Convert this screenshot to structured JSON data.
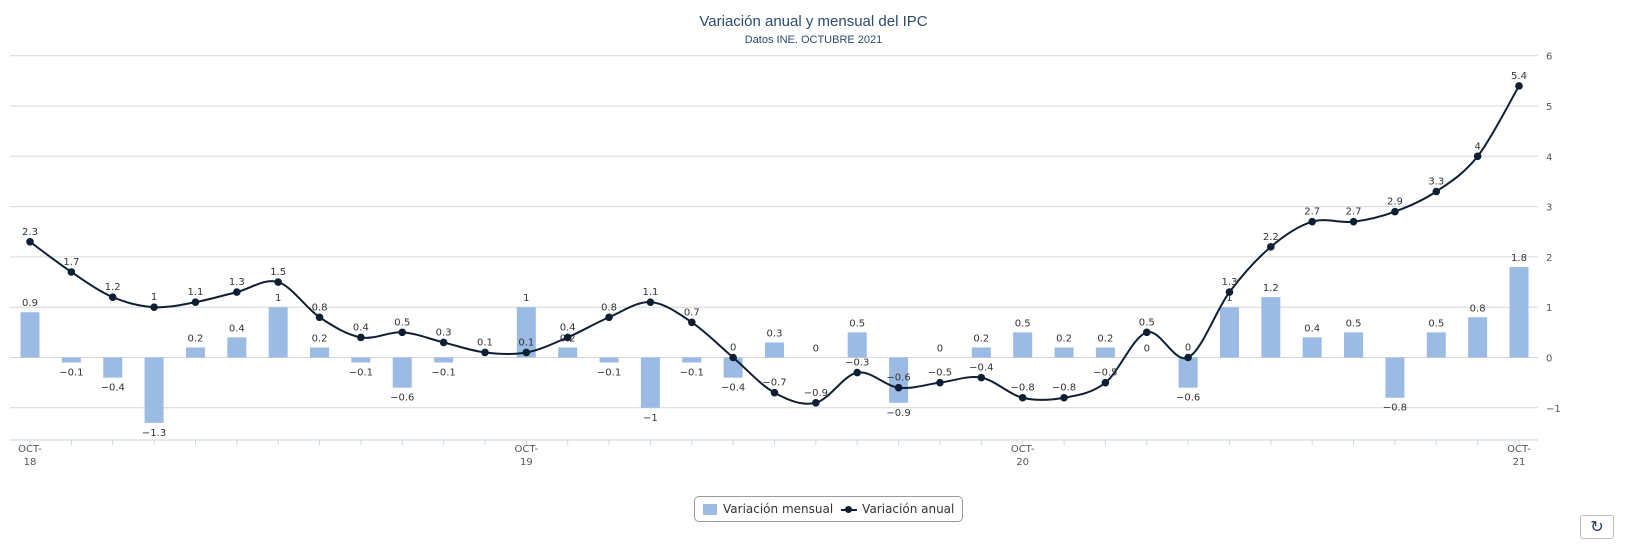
{
  "header": {
    "title": "Variación anual y mensual del IPC",
    "subtitle": "Datos INE. OCTUBRE 2021"
  },
  "legend": {
    "monthly_label": "Variación mensual",
    "annual_label": "Variación anual"
  },
  "refresh_icon": "refresh-icon",
  "colors": {
    "bar": "#9bbbe4",
    "line": "#0f1f33",
    "grid": "#d6d6d6",
    "axis": "#c9d6e4"
  },
  "chart_data": {
    "type": "bar+line",
    "months": 37,
    "x_tick_labels": [
      {
        "index": 0,
        "top": "OCT-",
        "bottom": "18"
      },
      {
        "index": 12,
        "top": "OCT-",
        "bottom": "19"
      },
      {
        "index": 24,
        "top": "OCT-",
        "bottom": "20"
      },
      {
        "index": 36,
        "top": "OCT-",
        "bottom": "21"
      }
    ],
    "y_ticks": [
      -1,
      0,
      1,
      2,
      3,
      4,
      5,
      6
    ],
    "ylim": [
      -1.6,
      6
    ],
    "grid": true,
    "legend_position": "bottom-center",
    "series": [
      {
        "name": "Variación mensual",
        "kind": "bar",
        "values": [
          0.9,
          -0.1,
          -0.4,
          -1.3,
          0.2,
          0.4,
          1,
          0.2,
          -0.1,
          -0.6,
          -0.1,
          0,
          1,
          0.2,
          -0.1,
          -1,
          -0.1,
          -0.4,
          0.3,
          0,
          0.5,
          -0.9,
          0,
          0.2,
          0.5,
          0.2,
          0.2,
          0,
          -0.6,
          1,
          1.2,
          0.4,
          0.5,
          -0.8,
          0.5,
          0.8,
          1.8
        ],
        "labels": [
          "0.9",
          "−0.1",
          "−0.4",
          "−1.3",
          "0.2",
          "0.4",
          "1",
          "0.2",
          "−0.1",
          "−0.6",
          "−0.1",
          "",
          "1",
          "0.2",
          "−0.1",
          "−1",
          "−0.1",
          "−0.4",
          "0.3",
          "0",
          "0.5",
          "−0.9",
          "0",
          "0.2",
          "0.5",
          "0.2",
          "0.2",
          "0",
          "−0.6",
          "1",
          "1.2",
          "0.4",
          "0.5",
          "−0.8",
          "0.5",
          "0.8",
          "1.8"
        ]
      },
      {
        "name": "Variación anual",
        "kind": "line",
        "values": [
          2.3,
          1.7,
          1.2,
          1,
          1.1,
          1.3,
          1.5,
          0.8,
          0.4,
          0.5,
          0.3,
          0.1,
          0.1,
          0.4,
          0.8,
          1.1,
          0.7,
          0,
          -0.7,
          -0.9,
          -0.3,
          -0.6,
          -0.5,
          -0.4,
          -0.8,
          -0.8,
          -0.5,
          0.5,
          0,
          1.3,
          2.2,
          2.7,
          2.7,
          2.9,
          3.3,
          4,
          5.4
        ],
        "labels": [
          "2.3",
          "1.7",
          "1.2",
          "1",
          "1.1",
          "1.3",
          "1.5",
          "0.8",
          "0.4",
          "0.5",
          "0.3",
          "0.1",
          "0.1",
          "0.4",
          "0.8",
          "1.1",
          "0.7",
          "0",
          "−0.7",
          "−0.9",
          "−0.3",
          "−0.6",
          "−0.5",
          "−0.4",
          "−0.8",
          "−0.8",
          "−0.5",
          "0.5",
          "0",
          "1.3",
          "2.2",
          "2.7",
          "2.7",
          "2.9",
          "3.3",
          "4",
          "5.4"
        ]
      }
    ]
  }
}
